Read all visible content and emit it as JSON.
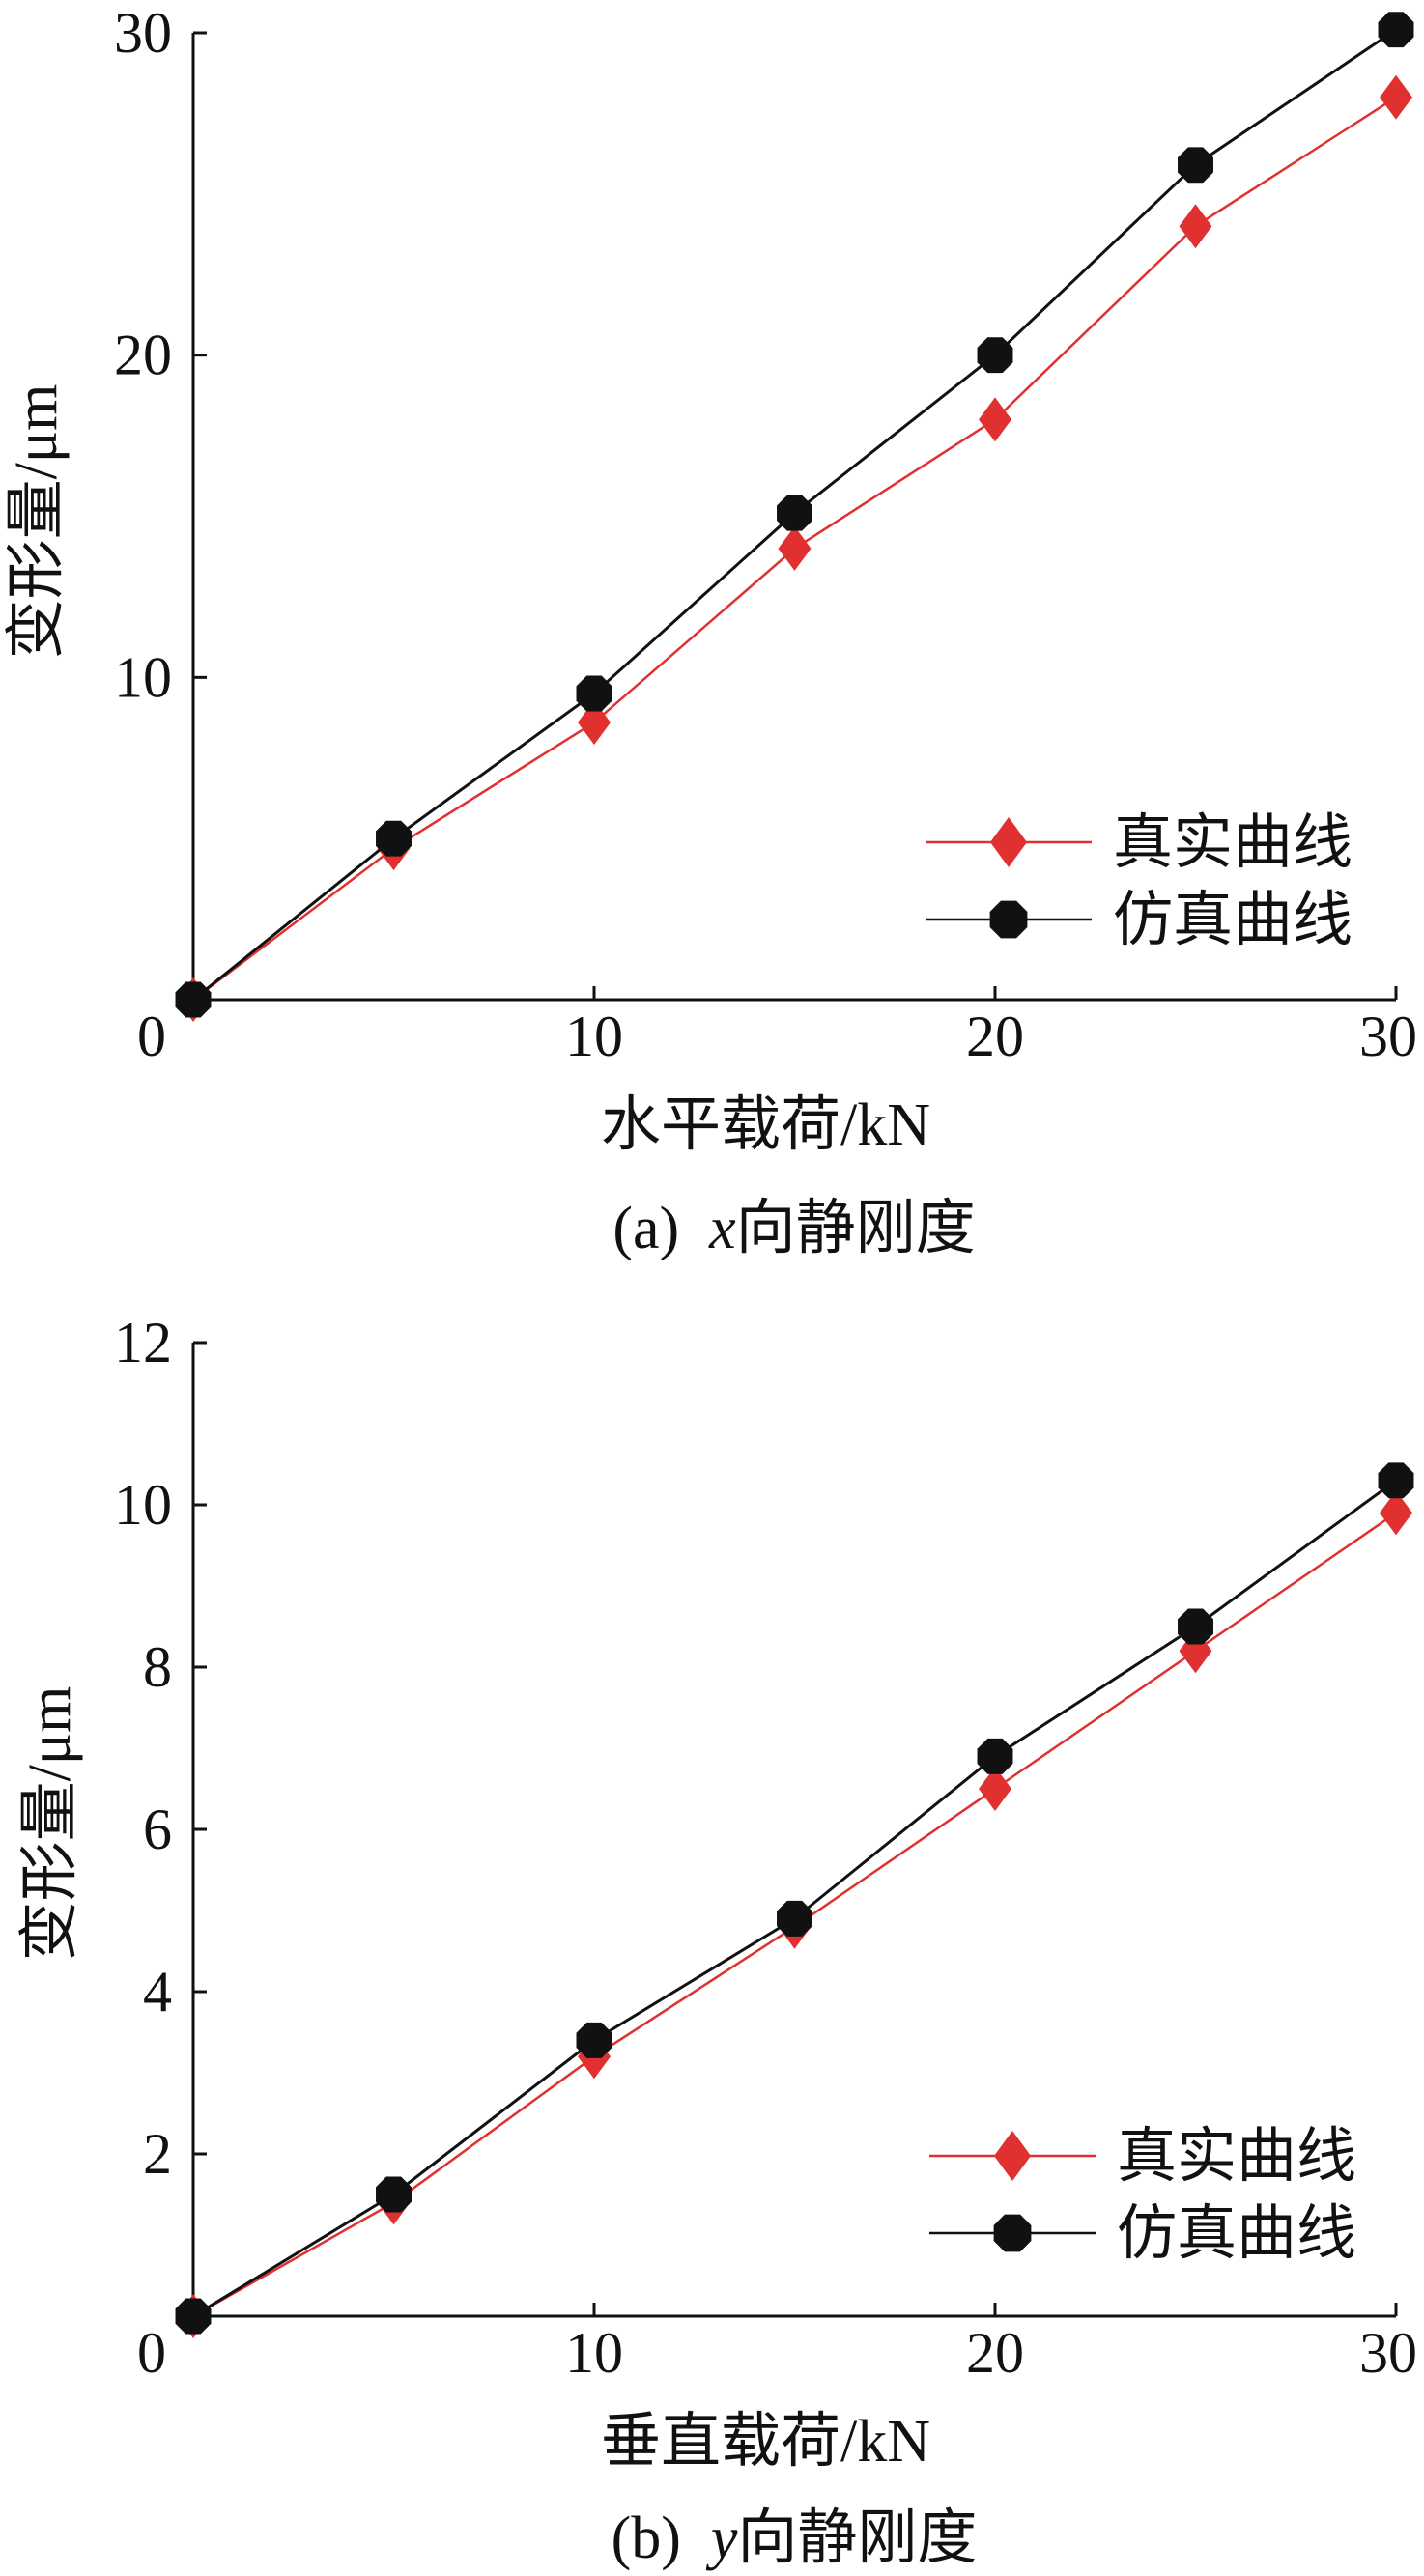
{
  "chart_data": [
    {
      "type": "line",
      "caption": "(a)  x向静刚度",
      "caption_prefix": "(a)",
      "caption_var": "x",
      "caption_text": "向静刚度",
      "xlabel": "水平载荷/kN",
      "ylabel": "变形量/μm",
      "xlim": [
        0,
        30
      ],
      "ylim": [
        0,
        30
      ],
      "x_ticks": [
        0,
        10,
        20,
        30
      ],
      "y_ticks": [
        10,
        20,
        30
      ],
      "x_tick_labels": [
        "0",
        "10",
        "20",
        "30"
      ],
      "y_tick_labels": [
        "10",
        "20",
        "30"
      ],
      "grid": false,
      "legend_position": "bottom-right",
      "x": [
        0,
        5,
        10,
        15,
        20,
        25,
        30
      ],
      "series": [
        {
          "name": "真实曲线",
          "values": [
            0,
            4.7,
            8.6,
            14.0,
            18.0,
            24.0,
            28.0
          ],
          "color": "#e03030",
          "marker": "diamond"
        },
        {
          "name": "仿真曲线",
          "values": [
            0,
            5.0,
            9.5,
            15.1,
            20.0,
            25.9,
            30.1
          ],
          "color": "#111111",
          "marker": "octagon"
        }
      ]
    },
    {
      "type": "line",
      "caption": "(b)  y向静刚度",
      "caption_prefix": "(b)",
      "caption_var": "y",
      "caption_text": "向静刚度",
      "xlabel": "垂直载荷/kN",
      "ylabel": "变形量/μm",
      "xlim": [
        0,
        30
      ],
      "ylim": [
        0,
        12
      ],
      "x_ticks": [
        0,
        10,
        20,
        30
      ],
      "y_ticks": [
        2,
        4,
        6,
        8,
        10,
        12
      ],
      "x_tick_labels": [
        "0",
        "10",
        "20",
        "30"
      ],
      "y_tick_labels": [
        "2",
        "4",
        "6",
        "8",
        "10",
        "12"
      ],
      "grid": false,
      "legend_position": "bottom-right",
      "x": [
        0,
        5,
        10,
        15,
        20,
        25,
        30
      ],
      "series": [
        {
          "name": "真实曲线",
          "values": [
            0,
            1.4,
            3.2,
            4.8,
            6.5,
            8.2,
            9.9
          ],
          "color": "#e03030",
          "marker": "diamond"
        },
        {
          "name": "仿真曲线",
          "values": [
            0,
            1.5,
            3.4,
            4.9,
            6.9,
            8.5,
            10.3
          ],
          "color": "#111111",
          "marker": "octagon"
        }
      ]
    }
  ]
}
